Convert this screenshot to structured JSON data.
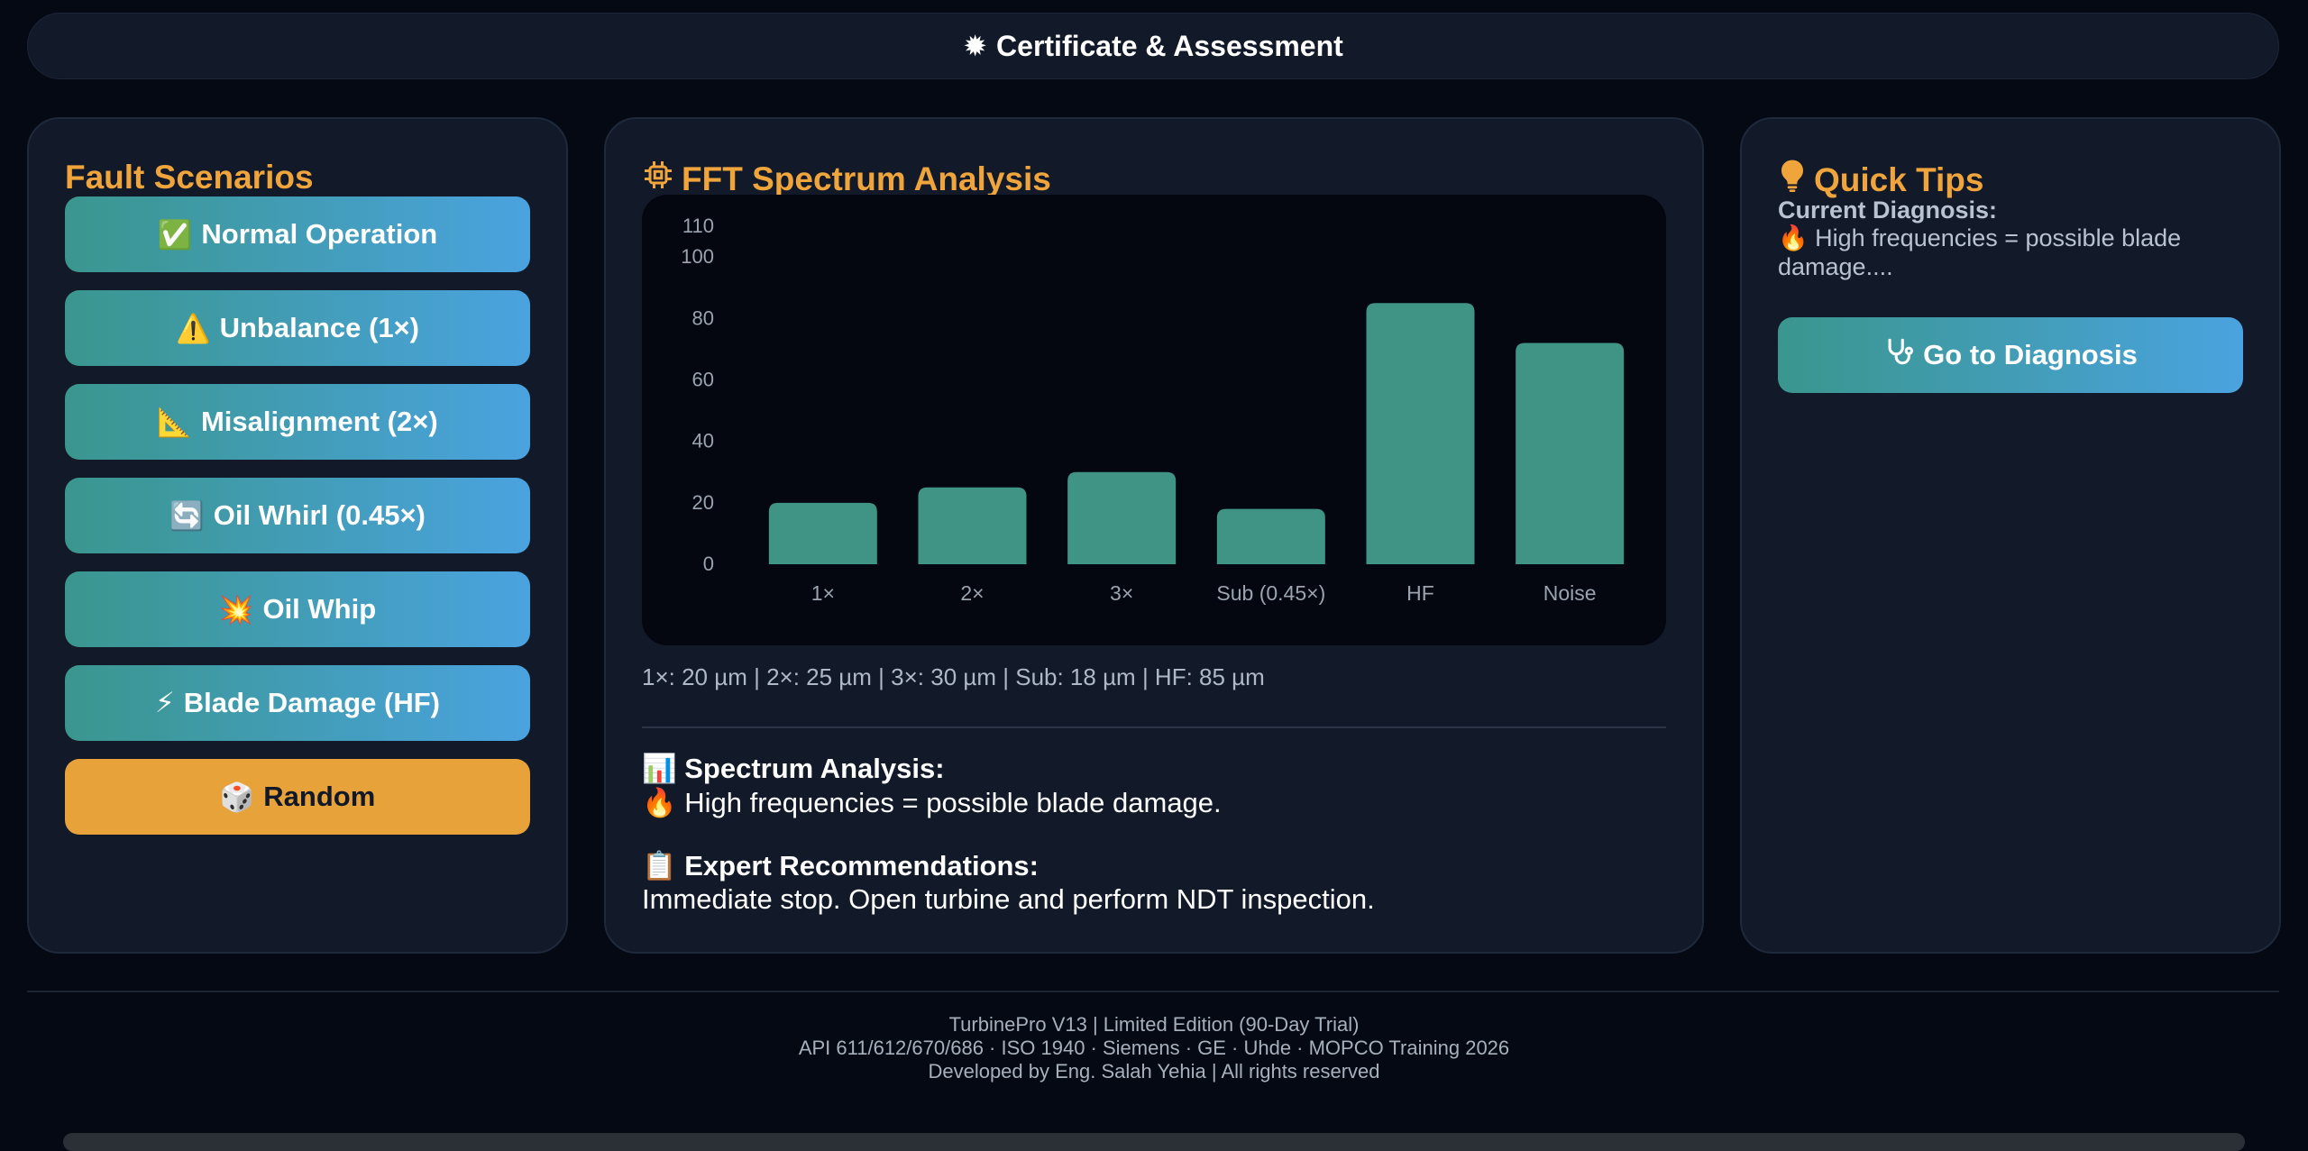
{
  "header": {
    "icon": "✹",
    "title": "Certificate & Assessment"
  },
  "scenarios": {
    "title": "Fault Scenarios",
    "buttons": [
      {
        "icon": "✅",
        "label": "Normal Operation"
      },
      {
        "icon": "⚠️",
        "label": "Unbalance (1×)"
      },
      {
        "icon": "📐",
        "label": "Misalignment (2×)"
      },
      {
        "icon": "🔄",
        "label": "Oil Whirl (0.45×)"
      },
      {
        "icon": "💥",
        "label": "Oil Whip"
      },
      {
        "icon": "⚡",
        "label": "Blade Damage (HF)"
      }
    ],
    "random": {
      "icon": "🎲",
      "label": "Random"
    }
  },
  "spectrum": {
    "title": "FFT Spectrum Analysis",
    "icon_name": "chip-icon",
    "readout": "1×: 20 µm | 2×: 25 µm | 3×: 30 µm | Sub: 18 µm | HF: 85 µm",
    "analysis_icon": "📊",
    "analysis_title": "Spectrum Analysis:",
    "analysis_text_icon": "🔥",
    "analysis_text": "High frequencies = possible blade damage.",
    "recommend_icon": "📋",
    "recommend_title": "Expert Recommendations:",
    "recommend_text": "Immediate stop. Open turbine and perform NDT inspection."
  },
  "tips": {
    "title": "Quick Tips",
    "icon_name": "lightbulb-icon",
    "label": "Current Diagnosis:",
    "text_icon": "🔥",
    "text": "High frequencies = possible blade damage....",
    "button_label": "Go to Diagnosis",
    "button_icon_name": "stethoscope-icon"
  },
  "footer": {
    "line1": "TurbinePro V13 | Limited Edition (90-Day Trial)",
    "line2": "API 611/612/670/686 · ISO 1940 · Siemens · GE · Uhde · MOPCO Training 2026",
    "line3": "Developed by Eng. Salah Yehia | All rights reserved"
  },
  "chart_data": {
    "type": "bar",
    "categories": [
      "1×",
      "2×",
      "3×",
      "Sub (0.45×)",
      "HF",
      "Noise"
    ],
    "values": [
      20,
      25,
      30,
      18,
      85,
      72
    ],
    "yticks": [
      0,
      20,
      40,
      60,
      80,
      100,
      110
    ],
    "ylim": [
      0,
      110
    ],
    "grid": false,
    "bar_color": "#3f9486",
    "title": "",
    "xlabel": "",
    "ylabel": ""
  }
}
